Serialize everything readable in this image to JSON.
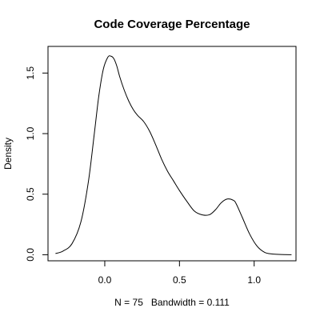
{
  "chart_data": {
    "type": "line",
    "title": "Code Coverage Percentage",
    "xlabel": "N = 75   Bandwidth = 0.111",
    "ylabel": "Density",
    "xlim": [
      -0.38,
      1.28
    ],
    "ylim": [
      -0.05,
      1.72
    ],
    "x_ticks": [
      0.0,
      0.5,
      1.0
    ],
    "x_tick_labels": [
      "0.0",
      "0.5",
      "1.0"
    ],
    "y_ticks": [
      0.0,
      0.5,
      1.0,
      1.5
    ],
    "y_tick_labels": [
      "0.0",
      "0.5",
      "1.0",
      "1.5"
    ],
    "grid": false,
    "series": [
      {
        "x": [
          -0.33,
          -0.28,
          -0.22,
          -0.16,
          -0.11,
          -0.07,
          -0.04,
          -0.01,
          0.02,
          0.04,
          0.06,
          0.08,
          0.1,
          0.13,
          0.16,
          0.19,
          0.22,
          0.26,
          0.3,
          0.34,
          0.38,
          0.42,
          0.46,
          0.5,
          0.55,
          0.6,
          0.65,
          0.7,
          0.74,
          0.78,
          0.82,
          0.86,
          0.88,
          0.92,
          0.97,
          1.02,
          1.07,
          1.12,
          1.18,
          1.25
        ],
        "y": [
          0.01,
          0.03,
          0.09,
          0.27,
          0.6,
          1.0,
          1.31,
          1.53,
          1.63,
          1.64,
          1.62,
          1.56,
          1.47,
          1.36,
          1.27,
          1.2,
          1.15,
          1.1,
          1.02,
          0.91,
          0.79,
          0.69,
          0.61,
          0.53,
          0.44,
          0.36,
          0.33,
          0.33,
          0.37,
          0.43,
          0.46,
          0.45,
          0.42,
          0.31,
          0.17,
          0.07,
          0.02,
          0.006,
          0.002,
          0.0
        ]
      }
    ]
  }
}
